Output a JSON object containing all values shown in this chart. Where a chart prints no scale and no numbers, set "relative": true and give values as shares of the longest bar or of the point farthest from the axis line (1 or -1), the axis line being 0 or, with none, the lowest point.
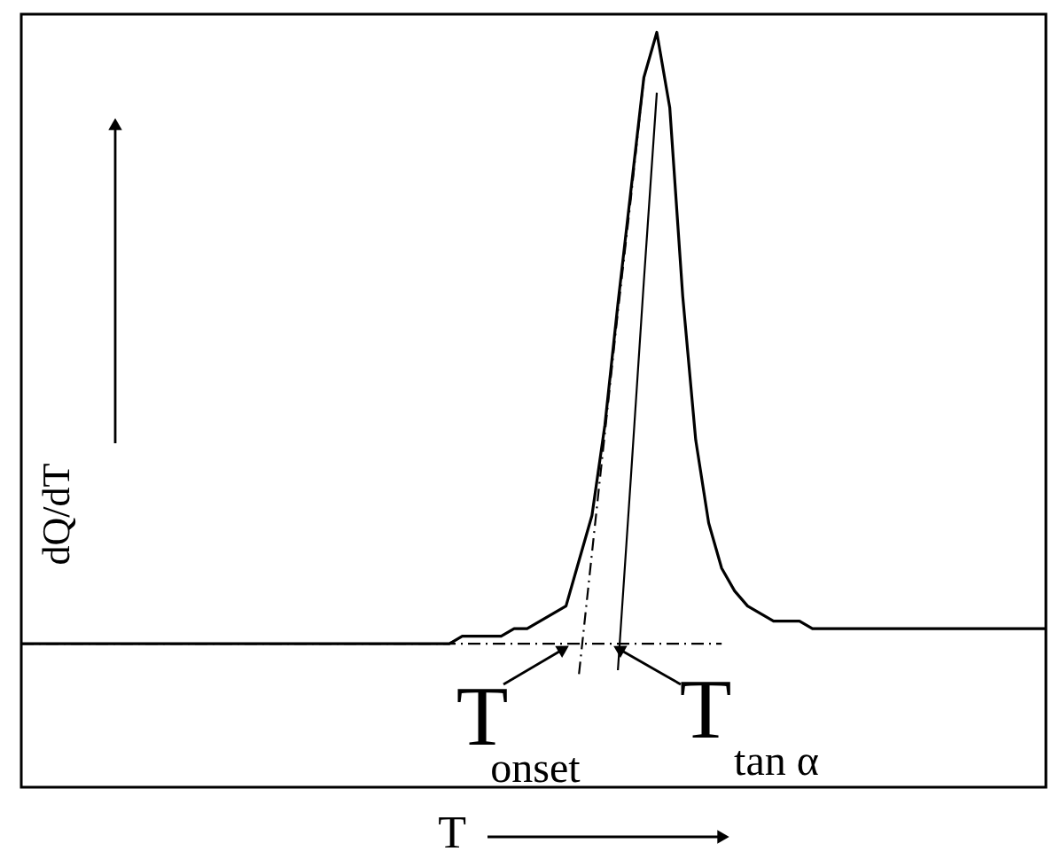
{
  "chart_data": {
    "type": "line",
    "relative": true,
    "xlabel": "T",
    "ylabel": "dQ/dT",
    "categories": [
      null,
      null,
      null,
      null,
      null,
      null,
      null,
      null,
      null,
      null,
      null,
      null,
      null,
      null,
      null,
      null,
      null,
      null,
      null,
      null,
      null,
      null,
      null,
      null,
      null,
      null,
      null,
      null,
      null,
      null,
      null,
      null,
      null,
      null,
      null,
      null,
      null,
      null,
      null,
      null,
      null,
      null,
      null,
      null,
      null,
      null,
      null,
      null,
      null,
      null,
      null,
      null,
      null,
      null,
      null,
      null,
      null,
      null,
      null,
      null,
      null,
      null,
      null,
      null,
      null,
      null,
      null,
      null,
      null,
      null,
      null,
      null,
      null,
      null,
      null,
      null,
      null,
      null,
      null,
      null
    ],
    "series": [
      {
        "color": "#000000",
        "values": [
          0.19,
          0.19,
          0.19,
          0.19,
          0.19,
          0.19,
          0.19,
          0.19,
          0.19,
          0.19,
          0.19,
          0.19,
          0.19,
          0.19,
          0.19,
          0.19,
          0.19,
          0.19,
          0.19,
          0.19,
          0.19,
          0.19,
          0.19,
          0.19,
          0.19,
          0.19,
          0.19,
          0.19,
          0.19,
          0.19,
          0.19,
          0.19,
          0.19,
          0.19,
          0.2,
          0.2,
          0.2,
          0.2,
          0.21,
          0.21,
          0.22,
          0.23,
          0.24,
          0.3,
          0.36,
          0.48,
          0.64,
          0.79,
          0.94,
          1.0,
          0.9,
          0.65,
          0.46,
          0.35,
          0.29,
          0.26,
          0.24,
          0.23,
          0.22,
          0.22,
          0.22,
          0.21,
          0.21,
          0.21,
          0.21,
          0.21,
          0.21,
          0.21,
          0.21,
          0.21,
          0.21,
          0.21,
          0.21,
          0.21,
          0.21,
          0.21,
          0.21,
          0.21,
          0.21,
          0.21
        ]
      },
      {
        "type": "line",
        "color": "#000000",
        "line_style": "dashed",
        "values": [
          0.19,
          0.19,
          0.19,
          0.19,
          0.19,
          0.19,
          0.19,
          0.19,
          0.19,
          0.19,
          0.19,
          0.19,
          0.19,
          0.19,
          0.19,
          0.19,
          0.19,
          0.19,
          0.19,
          0.19,
          0.19,
          0.19,
          0.19,
          0.19,
          0.19,
          0.19,
          0.19,
          0.19,
          0.19,
          0.19,
          0.19,
          0.19,
          0.19,
          0.19,
          0.19,
          0.19,
          0.19,
          0.19,
          0.19,
          0.19,
          0.19,
          0.19,
          0.19,
          0.19,
          0.19,
          0.19,
          0.19,
          0.19,
          0.19,
          0.19,
          0.19,
          0.19,
          0.19,
          0.19,
          0.19,
          null,
          null,
          null,
          null,
          null,
          null,
          null,
          null,
          null,
          null,
          null,
          null,
          null,
          null,
          null,
          null,
          null,
          null,
          null,
          null,
          null,
          null,
          null,
          null,
          null
        ]
      },
      {
        "type": "line",
        "color": "#000000",
        "line_style": "dashed",
        "values": [
          null,
          null,
          null,
          null,
          null,
          null,
          null,
          null,
          null,
          null,
          null,
          null,
          null,
          null,
          null,
          null,
          null,
          null,
          null,
          null,
          null,
          null,
          null,
          null,
          null,
          null,
          null,
          null,
          null,
          null,
          null,
          null,
          null,
          null,
          null,
          null,
          null,
          null,
          null,
          null,
          null,
          null,
          null,
          0.15,
          0.31,
          0.47,
          0.63,
          0.78,
          0.94,
          null,
          null,
          null,
          null,
          null,
          null,
          null,
          null,
          null,
          null,
          null,
          null,
          null,
          null,
          null,
          null,
          null,
          null,
          null,
          null,
          null,
          null,
          null,
          null,
          null,
          null,
          null,
          null,
          null,
          null,
          null
        ]
      },
      {
        "type": "line",
        "color": "#000000",
        "values": [
          null,
          null,
          null,
          null,
          null,
          null,
          null,
          null,
          null,
          null,
          null,
          null,
          null,
          null,
          null,
          null,
          null,
          null,
          null,
          null,
          null,
          null,
          null,
          null,
          null,
          null,
          null,
          null,
          null,
          null,
          null,
          null,
          null,
          null,
          null,
          null,
          null,
          null,
          null,
          null,
          null,
          null,
          null,
          null,
          null,
          null,
          0.155,
          0.41,
          0.67,
          0.92,
          null,
          null,
          null,
          null,
          null,
          null,
          null,
          null,
          null,
          null,
          null,
          null,
          null,
          null,
          null,
          null,
          null,
          null,
          null,
          null,
          null,
          null,
          null,
          null,
          null,
          null,
          null,
          null,
          null,
          null
        ]
      }
    ],
    "annotations": [
      "T$_{onset}$",
      "T$_{tan α}$"
    ]
  }
}
